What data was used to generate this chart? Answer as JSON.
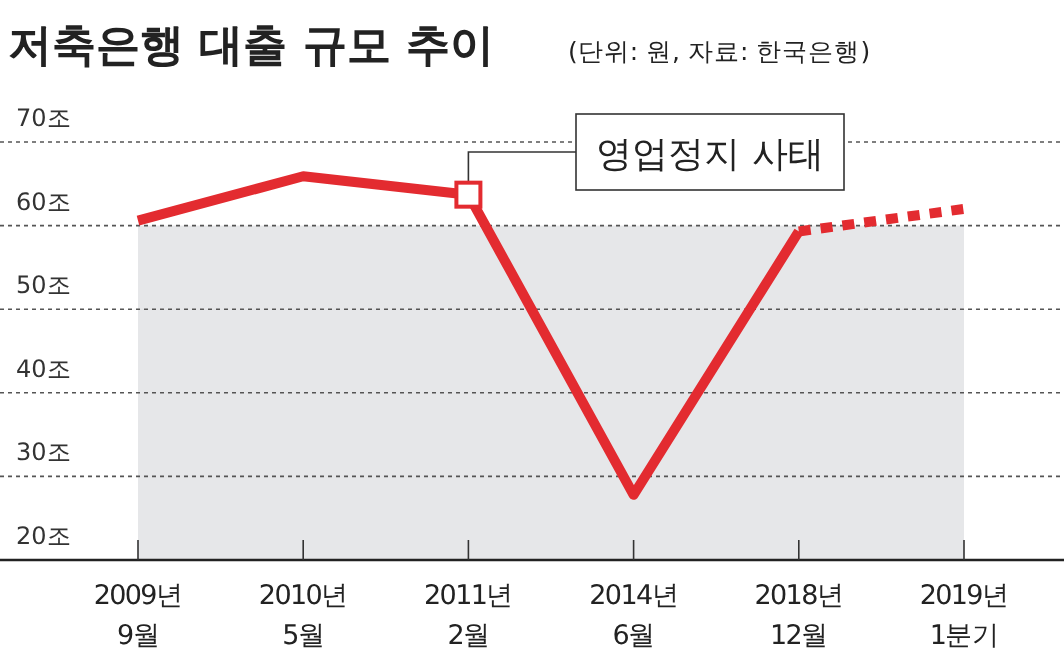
{
  "chart_data": {
    "type": "line",
    "title": "저축은행 대출 규모 추이",
    "subtitle": "(단위: 원, 자료: 한국은행)",
    "categories": [
      "2009년\n9월",
      "2010년\n5월",
      "2011년\n2월",
      "2014년\n6월",
      "2018년\n12월",
      "2019년\n1분기"
    ],
    "series": [
      {
        "color": "#e32b30",
        "line_style": "solid",
        "values": [
          60.6,
          65.9,
          63.7,
          27.8,
          59.3,
          null
        ]
      },
      {
        "color": "#e32b30",
        "line_style": "dotted",
        "values": [
          null,
          null,
          null,
          null,
          59.3,
          62.0
        ]
      }
    ],
    "ylim": [
      20,
      70
    ],
    "yticks": [
      {
        "value": 20,
        "label": "20조"
      },
      {
        "value": 30,
        "label": "30조"
      },
      {
        "value": 40,
        "label": "40조"
      },
      {
        "value": 50,
        "label": "50조"
      },
      {
        "value": 60,
        "label": "60조"
      },
      {
        "value": 70,
        "label": "70조"
      }
    ],
    "grid": "y",
    "bands": [
      {
        "axis": "y",
        "from": 20,
        "to": 60,
        "color": "#e6e7e9"
      }
    ],
    "annotations": [
      {
        "text": "영업정지 사태",
        "x": "2011년\n2월",
        "y": 63.7
      }
    ]
  }
}
